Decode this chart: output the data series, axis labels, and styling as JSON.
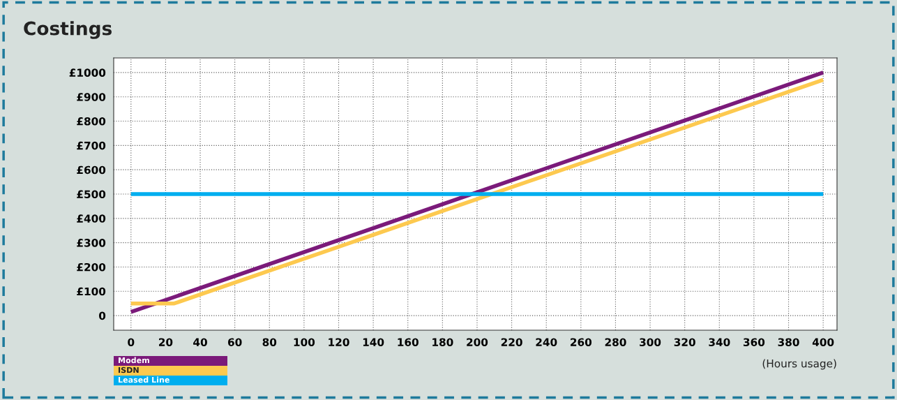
{
  "chart_data": {
    "type": "line",
    "title": "Costings",
    "xlabel": "(Hours usage)",
    "series": [
      {
        "name": "Modem",
        "color": "#7b1a7a",
        "x": [
          0,
          400
        ],
        "values": [
          15,
          1000
        ]
      },
      {
        "name": "ISDN",
        "color": "#fdc94f",
        "x": [
          0,
          25,
          400
        ],
        "values": [
          50,
          50,
          970
        ]
      },
      {
        "name": "Leased Line",
        "color": "#00aeef",
        "x": [
          0,
          400
        ],
        "values": [
          500,
          500
        ]
      }
    ],
    "xlim": [
      -10,
      408
    ],
    "ylim": [
      -60,
      1060
    ],
    "xticks": [
      0,
      20,
      40,
      60,
      80,
      100,
      120,
      140,
      160,
      180,
      200,
      220,
      240,
      260,
      280,
      300,
      320,
      340,
      360,
      380,
      400
    ],
    "yticks": [
      {
        "value": 0,
        "label": "0"
      },
      {
        "value": 100,
        "label": "£100"
      },
      {
        "value": 200,
        "label": "£200"
      },
      {
        "value": 300,
        "label": "£300"
      },
      {
        "value": 400,
        "label": "£400"
      },
      {
        "value": 500,
        "label": "£500"
      },
      {
        "value": 600,
        "label": "£600"
      },
      {
        "value": 700,
        "label": "£700"
      },
      {
        "value": 800,
        "label": "£800"
      },
      {
        "value": 900,
        "label": "£900"
      },
      {
        "value": 1000,
        "label": "£1000"
      }
    ],
    "grid": true,
    "legend": "bottom left",
    "marker": "none",
    "line_style": "solid"
  }
}
